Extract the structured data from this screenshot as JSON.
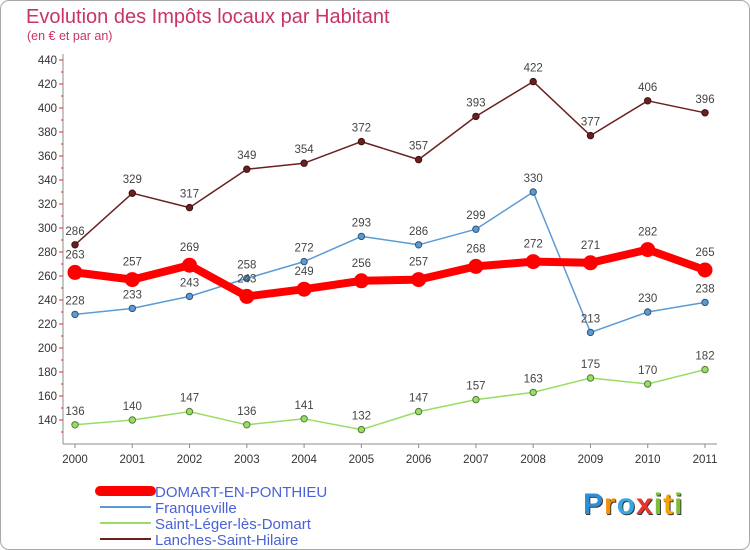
{
  "chart_data": {
    "type": "line",
    "title": "Evolution des Impôts locaux par Habitant",
    "subtitle": "(en € et par an)",
    "categories": [
      "2000",
      "2001",
      "2002",
      "2003",
      "2004",
      "2005",
      "2006",
      "2007",
      "2008",
      "2009",
      "2010",
      "2011"
    ],
    "ylim": [
      120,
      440
    ],
    "yticks": [
      140,
      160,
      180,
      200,
      220,
      240,
      260,
      280,
      300,
      320,
      340,
      360,
      380,
      400,
      420,
      440
    ],
    "grid": false,
    "legend": "bottom-left",
    "series": [
      {
        "name": "DOMART-EN-PONTHIEU",
        "color": "#ff0000",
        "values": [
          263,
          257,
          269,
          243,
          249,
          256,
          257,
          268,
          272,
          271,
          282,
          265
        ]
      },
      {
        "name": "Franqueville",
        "color": "#5b9bd5",
        "values": [
          228,
          233,
          243,
          258,
          272,
          293,
          286,
          299,
          330,
          213,
          230,
          238
        ]
      },
      {
        "name": "Saint-Léger-lès-Domart",
        "color": "#99dd66",
        "values": [
          136,
          140,
          147,
          136,
          141,
          132,
          147,
          157,
          163,
          175,
          170,
          182
        ]
      },
      {
        "name": "Lanches-Saint-Hilaire",
        "color": "#6b1f1f",
        "values": [
          286,
          329,
          317,
          349,
          354,
          372,
          357,
          393,
          422,
          377,
          406,
          396
        ]
      }
    ]
  },
  "logo": {
    "text": "Proxiti",
    "colors": [
      "#2f8fd6",
      "#f39200",
      "#3aa6e0",
      "#e8352b",
      "#7cbf3a",
      "#f5a300",
      "#7cbf3a"
    ]
  }
}
